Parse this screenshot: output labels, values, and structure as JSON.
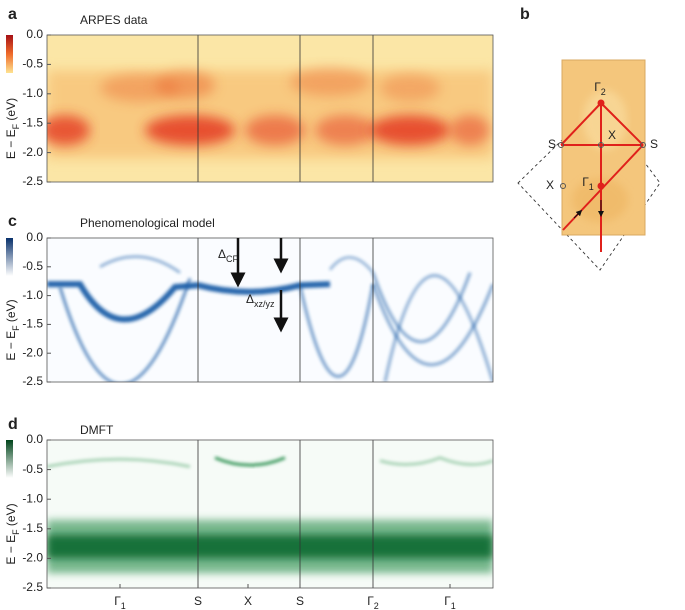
{
  "chart_data": [
    {
      "type": "heatmap",
      "panel": "a",
      "title": "ARPES data",
      "ylabel": "E − E",
      "ylabel_sub": "F",
      "ylabel_unit": " (eV)",
      "ylim": [
        -2.5,
        0
      ],
      "yticks": [
        {
          "value": 0,
          "label": "0.0"
        },
        {
          "value": -0.5,
          "label": "-0.5"
        },
        {
          "value": -1,
          "label": "-1.0"
        },
        {
          "value": -1.5,
          "label": "-1.5"
        },
        {
          "value": -2,
          "label": "-2.0"
        },
        {
          "value": -2.5,
          "label": "-2.5"
        }
      ],
      "color": "#d7301f"
    },
    {
      "type": "heatmap",
      "panel": "c",
      "title": "Phenomenological model",
      "ylabel": "E − E",
      "ylabel_sub": "F",
      "ylabel_unit": " (eV)",
      "ylim": [
        -2.5,
        0
      ],
      "yticks": [
        {
          "value": 0,
          "label": "0.0"
        },
        {
          "value": -0.5,
          "label": "-0.5"
        },
        {
          "value": -1,
          "label": "-1.0"
        },
        {
          "value": -1.5,
          "label": "-1.5"
        },
        {
          "value": -2,
          "label": "-2.0"
        },
        {
          "value": -2.5,
          "label": "-2.5"
        }
      ],
      "annotations": [
        {
          "text": "Δ",
          "sub": "CF"
        },
        {
          "text": "Δ",
          "sub": "xz/yz"
        }
      ],
      "color": "#1f5fa8"
    },
    {
      "type": "heatmap",
      "panel": "d",
      "title": "DMFT",
      "ylabel": "E − E",
      "ylabel_sub": "F",
      "ylabel_unit": " (eV)",
      "ylim": [
        -2.5,
        0
      ],
      "yticks": [
        {
          "value": 0,
          "label": "0.0"
        },
        {
          "value": -0.5,
          "label": "-0.5"
        },
        {
          "value": -1,
          "label": "-1.0"
        },
        {
          "value": -1.5,
          "label": "-1.5"
        },
        {
          "value": -2,
          "label": "-2.0"
        },
        {
          "value": -2.5,
          "label": "-2.5"
        }
      ],
      "x_labels": [
        {
          "text": "Γ",
          "sub": "1"
        },
        {
          "text": "S"
        },
        {
          "text": "X"
        },
        {
          "text": "S"
        },
        {
          "text": "Γ",
          "sub": "2"
        },
        {
          "text": "Γ",
          "sub": "1"
        }
      ],
      "color": "#1a7a3c"
    }
  ],
  "panel_b": {
    "letter": "b",
    "labels": [
      {
        "text": "Γ",
        "sub": "2"
      },
      {
        "text": "S"
      },
      {
        "text": "X"
      },
      {
        "text": "S"
      },
      {
        "text": "X"
      },
      {
        "text": "Γ",
        "sub": "1"
      }
    ]
  }
}
